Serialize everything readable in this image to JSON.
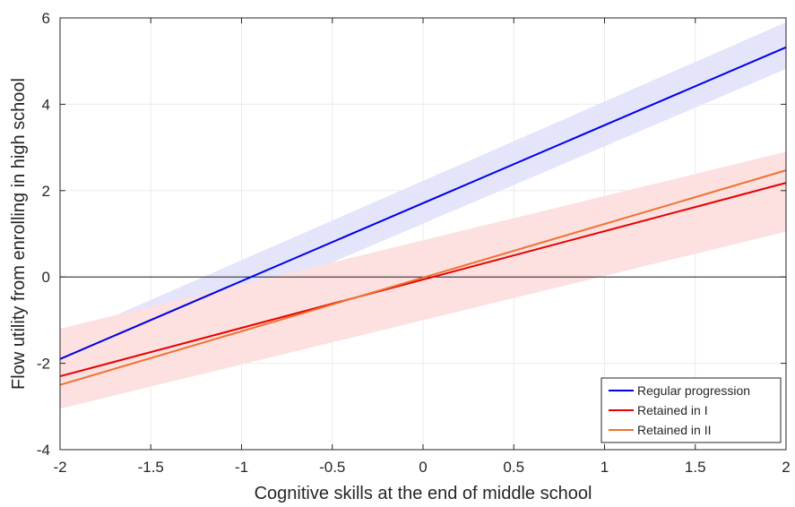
{
  "chart_data": {
    "type": "line",
    "xlabel": "Cognitive skills at the end of middle school",
    "ylabel": "Flow utility from enrolling in high school",
    "xlim": [
      -2,
      2
    ],
    "ylim": [
      -4,
      6
    ],
    "x_ticks": [
      -2,
      -1.5,
      -1,
      -0.5,
      0,
      0.5,
      1,
      1.5,
      2
    ],
    "y_ticks": [
      -4,
      -2,
      0,
      2,
      4,
      6
    ],
    "x_tick_labels": [
      "-2",
      "-1.5",
      "-1",
      "-0.5",
      "0",
      "0.5",
      "1",
      "1.5",
      "2"
    ],
    "y_tick_labels": [
      "-4",
      "-2",
      "0",
      "2",
      "4",
      "6"
    ],
    "grid": true,
    "zero_reference_line": true,
    "legend_location": "bottom-right",
    "series": [
      {
        "name": "Regular progression",
        "color": "#0000e6",
        "band_color": "#e4e4fb",
        "x": [
          -2,
          2
        ],
        "y": [
          -1.9,
          5.32
        ],
        "band_upper": [
          -1.45,
          5.9
        ],
        "band_lower": [
          -2.35,
          4.82
        ]
      },
      {
        "name": "Retained in I",
        "color": "#e60000",
        "band_color": "#fde0e0",
        "x": [
          -2,
          2
        ],
        "y": [
          -2.3,
          2.18
        ],
        "band_upper": [
          -1.2,
          2.9
        ],
        "band_lower": [
          -3.05,
          1.05
        ]
      },
      {
        "name": "Retained in II",
        "color": "#ef7330",
        "x": [
          -2,
          2
        ],
        "y": [
          -2.5,
          2.47
        ]
      }
    ]
  }
}
